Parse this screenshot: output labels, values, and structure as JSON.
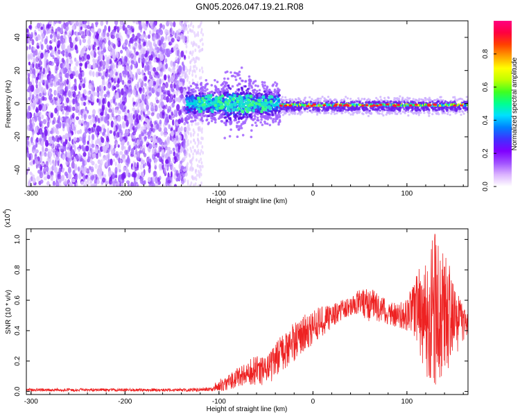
{
  "title": "GN05.2026.047.19.21.R08",
  "colors": {
    "snr_line": "#ee2222",
    "gradient": [
      "#ffffff",
      "#dcb4ff",
      "#a050ff",
      "#8000ff",
      "#4030ff",
      "#0080ff",
      "#00e0ff",
      "#00ff90",
      "#40ff20",
      "#c0ff00",
      "#ffff00",
      "#ffa000",
      "#ff4000",
      "#ff0040",
      "#ff0080"
    ]
  },
  "chart_data": [
    {
      "type": "heatmap",
      "xlabel": "Height of straight line (km)",
      "ylabel": "Frequency (Hz)",
      "xlim": [
        -305,
        165
      ],
      "ylim": [
        -50,
        50
      ],
      "xticks": [
        -300,
        -200,
        -100,
        0,
        100
      ],
      "yticks": [
        -40,
        -20,
        0,
        20,
        40
      ],
      "xtick_labels": [
        "-300",
        "-200",
        "-100",
        "0",
        "100"
      ],
      "ytick_labels": [
        "-40",
        "-20",
        "0",
        "20",
        "40"
      ],
      "colorbar": {
        "label": "Normalized spectral amplitude",
        "range": [
          0.0,
          1.0
        ],
        "ticks": [
          0.0,
          0.2,
          0.4,
          0.6,
          0.8
        ],
        "tick_labels": [
          "0.0",
          "0.2",
          "0.4",
          "0.6",
          "0.8"
        ]
      },
      "regions": [
        {
          "x": [
            -305,
            -135
          ],
          "freq": [
            -50,
            50
          ],
          "amplitude": 0.12
        },
        {
          "x": [
            -135,
            -35
          ],
          "freq": [
            -8,
            8
          ],
          "amplitude": 0.3
        },
        {
          "x": [
            -35,
            165
          ],
          "freq": [
            -4,
            2
          ],
          "amplitude": 0.7
        }
      ],
      "grid": false
    },
    {
      "type": "line",
      "xlabel": "Height of straight line (km)",
      "ylabel": "SNR (10 * v/v)",
      "scale_label": "(x10",
      "scale_exponent": "4",
      "xlim": [
        -305,
        165
      ],
      "ylim": [
        -0.02,
        1.07
      ],
      "xticks": [
        -300,
        -200,
        -100,
        0,
        100
      ],
      "yticks": [
        0.0,
        0.2,
        0.4,
        0.6,
        0.8,
        1.0
      ],
      "xtick_labels": [
        "-300",
        "-200",
        "-100",
        "0",
        "100"
      ],
      "ytick_labels": [
        "0.0",
        "0.2",
        "0.4",
        "0.6",
        "0.8",
        "1.0"
      ],
      "series": [
        {
          "envelope": {
            "x": [
              -305,
              -200,
              -130,
              -110,
              -100,
              -90,
              -80,
              -70,
              -60,
              -50,
              -40,
              -30,
              -20,
              -10,
              0,
              10,
              20,
              30,
              40,
              50,
              60,
              70,
              80,
              90,
              100,
              110,
              120,
              130,
              140,
              150,
              160,
              165
            ],
            "low": [
              0.0,
              0.0,
              0.0,
              0.0,
              0.0,
              0.01,
              0.03,
              0.04,
              0.02,
              0.04,
              0.08,
              0.14,
              0.2,
              0.26,
              0.3,
              0.36,
              0.42,
              0.47,
              0.5,
              0.5,
              0.46,
              0.46,
              0.44,
              0.42,
              0.4,
              0.28,
              0.1,
              0.02,
              0.08,
              0.22,
              0.32,
              0.38
            ],
            "high": [
              0.02,
              0.02,
              0.02,
              0.03,
              0.08,
              0.11,
              0.16,
              0.2,
              0.24,
              0.22,
              0.32,
              0.4,
              0.46,
              0.5,
              0.54,
              0.56,
              0.57,
              0.6,
              0.62,
              0.68,
              0.7,
              0.64,
              0.6,
              0.58,
              0.62,
              0.78,
              0.9,
              1.05,
              0.95,
              0.72,
              0.56,
              0.5
            ]
          }
        }
      ],
      "grid": false
    }
  ]
}
